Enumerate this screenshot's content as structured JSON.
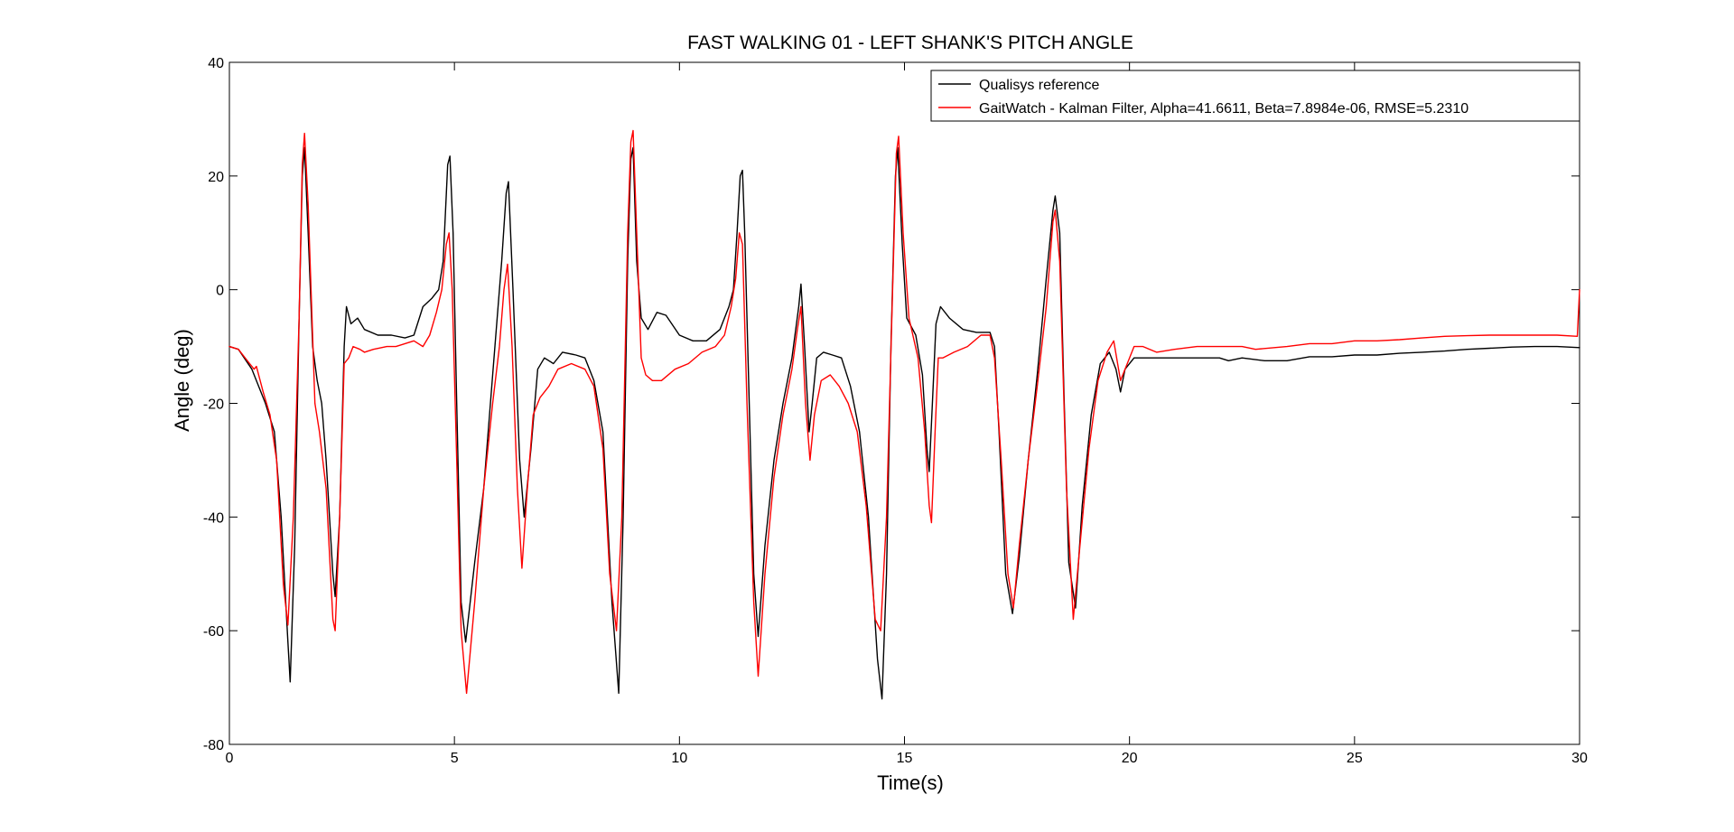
{
  "chart_data": {
    "type": "line",
    "title": "FAST WALKING 01 - LEFT SHANK'S PITCH ANGLE",
    "xlabel": "Time(s)",
    "ylabel": "Angle (deg)",
    "xlim": [
      0,
      30
    ],
    "ylim": [
      -80,
      40
    ],
    "xticks": [
      0,
      5,
      10,
      15,
      20,
      25,
      30
    ],
    "yticks": [
      -80,
      -60,
      -40,
      -20,
      0,
      20,
      40
    ],
    "xtick_labels": [
      "0",
      "5",
      "10",
      "15",
      "20",
      "25",
      "30"
    ],
    "ytick_labels": [
      "-80",
      "-60",
      "-40",
      "-20",
      "0",
      "20",
      "40"
    ],
    "grid": false,
    "legend_position": "top-right",
    "series": [
      {
        "name": "Qualisys reference",
        "color": "#000000",
        "points": [
          [
            0,
            -10
          ],
          [
            0.2,
            -10.5
          ],
          [
            0.5,
            -14
          ],
          [
            0.8,
            -20
          ],
          [
            1.0,
            -25
          ],
          [
            1.15,
            -40
          ],
          [
            1.3,
            -62
          ],
          [
            1.35,
            -69
          ],
          [
            1.45,
            -45
          ],
          [
            1.55,
            -5
          ],
          [
            1.62,
            20
          ],
          [
            1.67,
            25
          ],
          [
            1.75,
            10
          ],
          [
            1.85,
            -10
          ],
          [
            1.95,
            -16
          ],
          [
            2.05,
            -20
          ],
          [
            2.15,
            -30
          ],
          [
            2.3,
            -50
          ],
          [
            2.35,
            -54
          ],
          [
            2.45,
            -40
          ],
          [
            2.55,
            -10
          ],
          [
            2.6,
            -3
          ],
          [
            2.7,
            -6
          ],
          [
            2.85,
            -5
          ],
          [
            3.0,
            -7
          ],
          [
            3.3,
            -8
          ],
          [
            3.6,
            -8
          ],
          [
            3.9,
            -8.5
          ],
          [
            4.1,
            -8
          ],
          [
            4.3,
            -3
          ],
          [
            4.5,
            -1.5
          ],
          [
            4.65,
            0
          ],
          [
            4.75,
            5
          ],
          [
            4.85,
            22
          ],
          [
            4.9,
            23.5
          ],
          [
            4.97,
            10
          ],
          [
            5.05,
            -20
          ],
          [
            5.15,
            -55
          ],
          [
            5.25,
            -62
          ],
          [
            5.45,
            -48
          ],
          [
            5.65,
            -35
          ],
          [
            5.85,
            -15
          ],
          [
            6.05,
            5
          ],
          [
            6.15,
            17
          ],
          [
            6.2,
            19
          ],
          [
            6.3,
            0
          ],
          [
            6.45,
            -30
          ],
          [
            6.55,
            -40
          ],
          [
            6.7,
            -28
          ],
          [
            6.85,
            -14
          ],
          [
            7.0,
            -12
          ],
          [
            7.2,
            -13
          ],
          [
            7.4,
            -11
          ],
          [
            7.7,
            -11.5
          ],
          [
            7.9,
            -12
          ],
          [
            8.1,
            -16
          ],
          [
            8.3,
            -25
          ],
          [
            8.5,
            -55
          ],
          [
            8.65,
            -71
          ],
          [
            8.75,
            -40
          ],
          [
            8.85,
            5
          ],
          [
            8.92,
            23
          ],
          [
            8.97,
            25
          ],
          [
            9.05,
            5
          ],
          [
            9.15,
            -5
          ],
          [
            9.3,
            -7
          ],
          [
            9.5,
            -4
          ],
          [
            9.7,
            -4.5
          ],
          [
            10.0,
            -8
          ],
          [
            10.3,
            -9
          ],
          [
            10.6,
            -9
          ],
          [
            10.9,
            -7
          ],
          [
            11.1,
            -3
          ],
          [
            11.2,
            0
          ],
          [
            11.28,
            10
          ],
          [
            11.35,
            20
          ],
          [
            11.4,
            21
          ],
          [
            11.45,
            10
          ],
          [
            11.55,
            -20
          ],
          [
            11.65,
            -50
          ],
          [
            11.75,
            -61
          ],
          [
            11.9,
            -45
          ],
          [
            12.1,
            -30
          ],
          [
            12.3,
            -20
          ],
          [
            12.5,
            -12
          ],
          [
            12.65,
            -3
          ],
          [
            12.7,
            1
          ],
          [
            12.78,
            -10
          ],
          [
            12.88,
            -25
          ],
          [
            12.95,
            -20
          ],
          [
            13.05,
            -12
          ],
          [
            13.2,
            -11
          ],
          [
            13.4,
            -11.5
          ],
          [
            13.6,
            -12
          ],
          [
            13.8,
            -17
          ],
          [
            14.0,
            -25
          ],
          [
            14.2,
            -40
          ],
          [
            14.4,
            -65
          ],
          [
            14.5,
            -72
          ],
          [
            14.6,
            -50
          ],
          [
            14.7,
            -10
          ],
          [
            14.8,
            20
          ],
          [
            14.85,
            25
          ],
          [
            14.95,
            8
          ],
          [
            15.05,
            -5
          ],
          [
            15.25,
            -8
          ],
          [
            15.4,
            -15
          ],
          [
            15.5,
            -28
          ],
          [
            15.55,
            -32
          ],
          [
            15.62,
            -20
          ],
          [
            15.7,
            -6
          ],
          [
            15.8,
            -3
          ],
          [
            16.0,
            -5
          ],
          [
            16.3,
            -7
          ],
          [
            16.6,
            -7.5
          ],
          [
            16.9,
            -7.5
          ],
          [
            17.0,
            -10
          ],
          [
            17.1,
            -25
          ],
          [
            17.25,
            -50
          ],
          [
            17.4,
            -57
          ],
          [
            17.55,
            -47
          ],
          [
            17.75,
            -30
          ],
          [
            17.95,
            -15
          ],
          [
            18.15,
            2
          ],
          [
            18.3,
            14
          ],
          [
            18.35,
            16.5
          ],
          [
            18.45,
            10
          ],
          [
            18.55,
            -20
          ],
          [
            18.65,
            -48
          ],
          [
            18.8,
            -56
          ],
          [
            18.95,
            -38
          ],
          [
            19.15,
            -22
          ],
          [
            19.35,
            -13
          ],
          [
            19.55,
            -11
          ],
          [
            19.7,
            -14
          ],
          [
            19.8,
            -18
          ],
          [
            19.9,
            -14
          ],
          [
            20.1,
            -12
          ],
          [
            20.5,
            -12
          ],
          [
            21.0,
            -12
          ],
          [
            21.5,
            -12
          ],
          [
            22.0,
            -12
          ],
          [
            22.2,
            -12.5
          ],
          [
            22.5,
            -12
          ],
          [
            23.0,
            -12.5
          ],
          [
            23.5,
            -12.5
          ],
          [
            24.0,
            -11.8
          ],
          [
            24.5,
            -11.8
          ],
          [
            25.0,
            -11.5
          ],
          [
            25.5,
            -11.5
          ],
          [
            26.0,
            -11.2
          ],
          [
            26.5,
            -11
          ],
          [
            27.0,
            -10.8
          ],
          [
            27.5,
            -10.5
          ],
          [
            28.0,
            -10.3
          ],
          [
            28.5,
            -10.1
          ],
          [
            29.0,
            -10
          ],
          [
            29.5,
            -10
          ],
          [
            30.0,
            -10.2
          ]
        ]
      },
      {
        "name": "GaitWatch - Kalman Filter, Alpha=41.6611, Beta=7.8984e-06, RMSE=5.2310",
        "color": "#ff0000",
        "points": [
          [
            0,
            -10
          ],
          [
            0.2,
            -10.5
          ],
          [
            0.45,
            -13
          ],
          [
            0.55,
            -14
          ],
          [
            0.6,
            -13.5
          ],
          [
            0.75,
            -18
          ],
          [
            0.9,
            -22
          ],
          [
            1.05,
            -30
          ],
          [
            1.2,
            -52
          ],
          [
            1.3,
            -59
          ],
          [
            1.42,
            -40
          ],
          [
            1.55,
            -5
          ],
          [
            1.62,
            22
          ],
          [
            1.67,
            27.5
          ],
          [
            1.75,
            15
          ],
          [
            1.9,
            -20
          ],
          [
            2.0,
            -25
          ],
          [
            2.15,
            -35
          ],
          [
            2.3,
            -58
          ],
          [
            2.35,
            -60
          ],
          [
            2.45,
            -40
          ],
          [
            2.55,
            -13
          ],
          [
            2.65,
            -12
          ],
          [
            2.75,
            -10
          ],
          [
            2.9,
            -10.5
          ],
          [
            3.0,
            -11
          ],
          [
            3.2,
            -10.5
          ],
          [
            3.5,
            -10
          ],
          [
            3.7,
            -10
          ],
          [
            3.9,
            -9.5
          ],
          [
            4.1,
            -9
          ],
          [
            4.3,
            -10
          ],
          [
            4.45,
            -8
          ],
          [
            4.6,
            -4
          ],
          [
            4.72,
            0
          ],
          [
            4.82,
            8
          ],
          [
            4.88,
            10
          ],
          [
            4.95,
            0
          ],
          [
            5.05,
            -30
          ],
          [
            5.15,
            -60
          ],
          [
            5.27,
            -71
          ],
          [
            5.45,
            -55
          ],
          [
            5.65,
            -35
          ],
          [
            5.85,
            -20
          ],
          [
            6.0,
            -10
          ],
          [
            6.1,
            0
          ],
          [
            6.18,
            4.5
          ],
          [
            6.28,
            -10
          ],
          [
            6.4,
            -35
          ],
          [
            6.5,
            -49
          ],
          [
            6.62,
            -35
          ],
          [
            6.75,
            -22
          ],
          [
            6.9,
            -19
          ],
          [
            7.1,
            -17
          ],
          [
            7.3,
            -14
          ],
          [
            7.6,
            -13
          ],
          [
            7.9,
            -14
          ],
          [
            8.1,
            -17
          ],
          [
            8.3,
            -28
          ],
          [
            8.45,
            -50
          ],
          [
            8.6,
            -60
          ],
          [
            8.72,
            -40
          ],
          [
            8.85,
            10
          ],
          [
            8.92,
            26
          ],
          [
            8.97,
            28
          ],
          [
            9.05,
            10
          ],
          [
            9.15,
            -12
          ],
          [
            9.25,
            -15
          ],
          [
            9.4,
            -16
          ],
          [
            9.6,
            -16
          ],
          [
            9.9,
            -14
          ],
          [
            10.2,
            -13
          ],
          [
            10.5,
            -11
          ],
          [
            10.8,
            -10
          ],
          [
            11.0,
            -8
          ],
          [
            11.15,
            -3
          ],
          [
            11.25,
            2
          ],
          [
            11.33,
            10
          ],
          [
            11.4,
            8
          ],
          [
            11.5,
            -20
          ],
          [
            11.65,
            -55
          ],
          [
            11.75,
            -68
          ],
          [
            11.9,
            -50
          ],
          [
            12.1,
            -33
          ],
          [
            12.3,
            -22
          ],
          [
            12.5,
            -14
          ],
          [
            12.62,
            -7
          ],
          [
            12.7,
            -3
          ],
          [
            12.8,
            -20
          ],
          [
            12.9,
            -30
          ],
          [
            13.0,
            -22
          ],
          [
            13.15,
            -16
          ],
          [
            13.35,
            -15
          ],
          [
            13.55,
            -17
          ],
          [
            13.75,
            -20
          ],
          [
            13.95,
            -25
          ],
          [
            14.15,
            -38
          ],
          [
            14.35,
            -58
          ],
          [
            14.47,
            -60
          ],
          [
            14.6,
            -40
          ],
          [
            14.72,
            -5
          ],
          [
            14.82,
            24
          ],
          [
            14.87,
            27
          ],
          [
            14.97,
            10
          ],
          [
            15.1,
            -5
          ],
          [
            15.3,
            -12
          ],
          [
            15.45,
            -25
          ],
          [
            15.55,
            -38
          ],
          [
            15.6,
            -41
          ],
          [
            15.68,
            -25
          ],
          [
            15.75,
            -12
          ],
          [
            15.85,
            -12
          ],
          [
            16.1,
            -11
          ],
          [
            16.4,
            -10
          ],
          [
            16.7,
            -8
          ],
          [
            16.9,
            -8
          ],
          [
            17.0,
            -12
          ],
          [
            17.15,
            -30
          ],
          [
            17.3,
            -50
          ],
          [
            17.42,
            -56
          ],
          [
            17.55,
            -45
          ],
          [
            17.75,
            -30
          ],
          [
            17.95,
            -17
          ],
          [
            18.15,
            -3
          ],
          [
            18.3,
            12
          ],
          [
            18.35,
            14
          ],
          [
            18.45,
            5
          ],
          [
            18.6,
            -35
          ],
          [
            18.75,
            -58
          ],
          [
            18.9,
            -45
          ],
          [
            19.1,
            -28
          ],
          [
            19.3,
            -16
          ],
          [
            19.5,
            -11
          ],
          [
            19.65,
            -9
          ],
          [
            19.8,
            -16
          ],
          [
            19.95,
            -13
          ],
          [
            20.1,
            -10
          ],
          [
            20.3,
            -10
          ],
          [
            20.6,
            -11
          ],
          [
            21.0,
            -10.5
          ],
          [
            21.5,
            -10
          ],
          [
            22.0,
            -10
          ],
          [
            22.5,
            -10
          ],
          [
            22.8,
            -10.5
          ],
          [
            23.5,
            -10
          ],
          [
            24.0,
            -9.5
          ],
          [
            24.5,
            -9.5
          ],
          [
            25.0,
            -9
          ],
          [
            25.5,
            -9
          ],
          [
            26.0,
            -8.8
          ],
          [
            26.5,
            -8.5
          ],
          [
            27.0,
            -8.2
          ],
          [
            27.5,
            -8.1
          ],
          [
            28.0,
            -8
          ],
          [
            28.5,
            -8
          ],
          [
            29.0,
            -8
          ],
          [
            29.5,
            -8
          ],
          [
            29.95,
            -8.2
          ],
          [
            30.0,
            0
          ]
        ]
      }
    ]
  }
}
